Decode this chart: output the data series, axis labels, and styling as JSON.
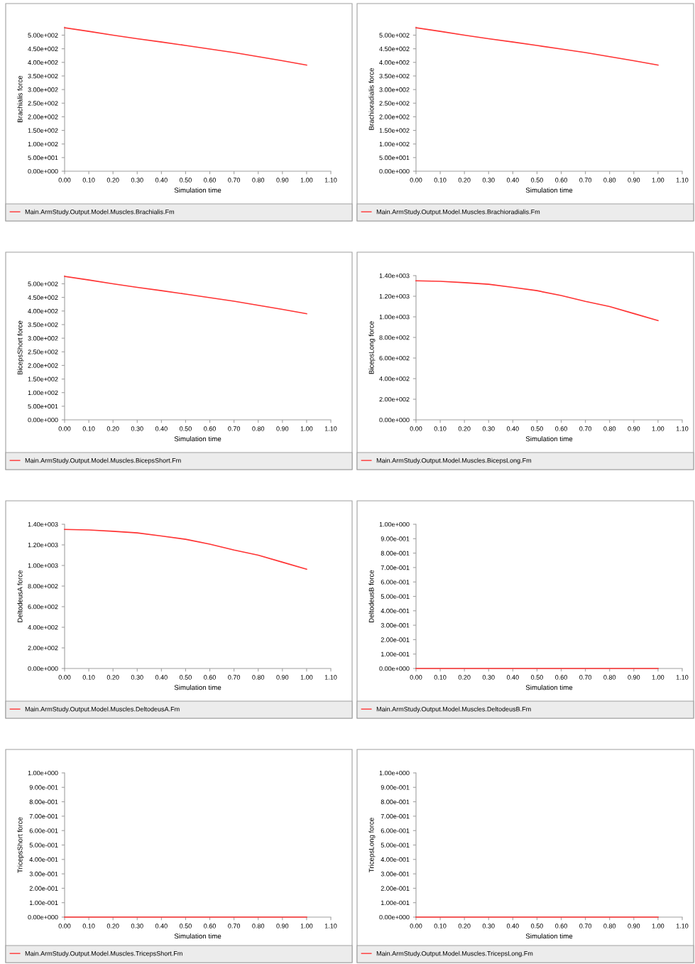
{
  "chart_data": [
    {
      "type": "line",
      "xlabel": "Simulation time",
      "ylabel": "Brachialis force",
      "x": [
        0,
        0.1,
        0.2,
        0.3,
        0.4,
        0.5,
        0.6,
        0.7,
        0.8,
        0.9,
        1.0
      ],
      "series": [
        {
          "name": "Main.ArmStudy.Output.Model.Muscles.Brachialis.Fm",
          "color": "#ff3333",
          "values": [
            527,
            514,
            500,
            487,
            475,
            462,
            449,
            436,
            421,
            406,
            390
          ]
        }
      ],
      "xlim": [
        0,
        1.1
      ],
      "xticks": [
        {
          "value": 0,
          "label": "0.00"
        },
        {
          "value": 0.1,
          "label": "0.10"
        },
        {
          "value": 0.2,
          "label": "0.20"
        },
        {
          "value": 0.3,
          "label": "0.30"
        },
        {
          "value": 0.4,
          "label": "0.40"
        },
        {
          "value": 0.5,
          "label": "0.50"
        },
        {
          "value": 0.6,
          "label": "0.60"
        },
        {
          "value": 0.7,
          "label": "0.70"
        },
        {
          "value": 0.8,
          "label": "0.80"
        },
        {
          "value": 0.9,
          "label": "0.90"
        },
        {
          "value": 1.0,
          "label": "1.00"
        },
        {
          "value": 1.1,
          "label": "1.10"
        }
      ],
      "ylim": [
        0,
        530
      ],
      "yticks": [
        {
          "value": 0,
          "label": "0.00e+000"
        },
        {
          "value": 50,
          "label": "5.00e+001"
        },
        {
          "value": 100,
          "label": "1.00e+002"
        },
        {
          "value": 150,
          "label": "1.50e+002"
        },
        {
          "value": 200,
          "label": "2.00e+002"
        },
        {
          "value": 250,
          "label": "2.50e+002"
        },
        {
          "value": 300,
          "label": "3.00e+002"
        },
        {
          "value": 350,
          "label": "3.50e+002"
        },
        {
          "value": 400,
          "label": "4.00e+002"
        },
        {
          "value": 450,
          "label": "4.50e+002"
        },
        {
          "value": 500,
          "label": "5.00e+002"
        }
      ],
      "legend": "bottom",
      "grid": false
    },
    {
      "type": "line",
      "xlabel": "Simulation time",
      "ylabel": "Brachioradialis force",
      "x": [
        0,
        0.1,
        0.2,
        0.3,
        0.4,
        0.5,
        0.6,
        0.7,
        0.8,
        0.9,
        1.0
      ],
      "series": [
        {
          "name": "Main.ArmStudy.Output.Model.Muscles.Brachioradialis.Fm",
          "color": "#ff3333",
          "values": [
            527,
            514,
            500,
            487,
            475,
            462,
            449,
            436,
            421,
            406,
            390
          ]
        }
      ],
      "xlim": [
        0,
        1.1
      ],
      "xticks": [
        {
          "value": 0,
          "label": "0.00"
        },
        {
          "value": 0.1,
          "label": "0.10"
        },
        {
          "value": 0.2,
          "label": "0.20"
        },
        {
          "value": 0.3,
          "label": "0.30"
        },
        {
          "value": 0.4,
          "label": "0.40"
        },
        {
          "value": 0.5,
          "label": "0.50"
        },
        {
          "value": 0.6,
          "label": "0.60"
        },
        {
          "value": 0.7,
          "label": "0.70"
        },
        {
          "value": 0.8,
          "label": "0.80"
        },
        {
          "value": 0.9,
          "label": "0.90"
        },
        {
          "value": 1.0,
          "label": "1.00"
        },
        {
          "value": 1.1,
          "label": "1.10"
        }
      ],
      "ylim": [
        0,
        530
      ],
      "yticks": [
        {
          "value": 0,
          "label": "0.00e+000"
        },
        {
          "value": 50,
          "label": "5.00e+001"
        },
        {
          "value": 100,
          "label": "1.00e+002"
        },
        {
          "value": 150,
          "label": "1.50e+002"
        },
        {
          "value": 200,
          "label": "2.00e+002"
        },
        {
          "value": 250,
          "label": "2.50e+002"
        },
        {
          "value": 300,
          "label": "3.00e+002"
        },
        {
          "value": 350,
          "label": "3.50e+002"
        },
        {
          "value": 400,
          "label": "4.00e+002"
        },
        {
          "value": 450,
          "label": "4.50e+002"
        },
        {
          "value": 500,
          "label": "5.00e+002"
        }
      ],
      "legend": "bottom",
      "grid": false
    },
    {
      "type": "line",
      "xlabel": "Simulation time",
      "ylabel": "BicepsShort force",
      "x": [
        0,
        0.1,
        0.2,
        0.3,
        0.4,
        0.5,
        0.6,
        0.7,
        0.8,
        0.9,
        1.0
      ],
      "series": [
        {
          "name": "Main.ArmStudy.Output.Model.Muscles.BicepsShort.Fm",
          "color": "#ff3333",
          "values": [
            527,
            514,
            500,
            487,
            475,
            462,
            449,
            436,
            421,
            406,
            390
          ]
        }
      ],
      "xlim": [
        0,
        1.1
      ],
      "xticks": [
        {
          "value": 0,
          "label": "0.00"
        },
        {
          "value": 0.1,
          "label": "0.10"
        },
        {
          "value": 0.2,
          "label": "0.20"
        },
        {
          "value": 0.3,
          "label": "0.30"
        },
        {
          "value": 0.4,
          "label": "0.40"
        },
        {
          "value": 0.5,
          "label": "0.50"
        },
        {
          "value": 0.6,
          "label": "0.60"
        },
        {
          "value": 0.7,
          "label": "0.70"
        },
        {
          "value": 0.8,
          "label": "0.80"
        },
        {
          "value": 0.9,
          "label": "0.90"
        },
        {
          "value": 1.0,
          "label": "1.00"
        },
        {
          "value": 1.1,
          "label": "1.10"
        }
      ],
      "ylim": [
        0,
        530
      ],
      "yticks": [
        {
          "value": 0,
          "label": "0.00e+000"
        },
        {
          "value": 50,
          "label": "5.00e+001"
        },
        {
          "value": 100,
          "label": "1.00e+002"
        },
        {
          "value": 150,
          "label": "1.50e+002"
        },
        {
          "value": 200,
          "label": "2.00e+002"
        },
        {
          "value": 250,
          "label": "2.50e+002"
        },
        {
          "value": 300,
          "label": "3.00e+002"
        },
        {
          "value": 350,
          "label": "3.50e+002"
        },
        {
          "value": 400,
          "label": "4.00e+002"
        },
        {
          "value": 450,
          "label": "4.50e+002"
        },
        {
          "value": 500,
          "label": "5.00e+002"
        }
      ],
      "legend": "bottom",
      "grid": false
    },
    {
      "type": "line",
      "xlabel": "Simulation time",
      "ylabel": "BicepsLong force",
      "x": [
        0,
        0.1,
        0.2,
        0.3,
        0.4,
        0.5,
        0.6,
        0.7,
        0.8,
        0.9,
        1.0
      ],
      "series": [
        {
          "name": "Main.ArmStudy.Output.Model.Muscles.BicepsLong.Fm",
          "color": "#ff3333",
          "values": [
            1350,
            1345,
            1332,
            1316,
            1286,
            1254,
            1207,
            1150,
            1100,
            1032,
            964
          ]
        }
      ],
      "xlim": [
        0,
        1.1
      ],
      "xticks": [
        {
          "value": 0,
          "label": "0.00"
        },
        {
          "value": 0.1,
          "label": "0.10"
        },
        {
          "value": 0.2,
          "label": "0.20"
        },
        {
          "value": 0.3,
          "label": "0.30"
        },
        {
          "value": 0.4,
          "label": "0.40"
        },
        {
          "value": 0.5,
          "label": "0.50"
        },
        {
          "value": 0.6,
          "label": "0.60"
        },
        {
          "value": 0.7,
          "label": "0.70"
        },
        {
          "value": 0.8,
          "label": "0.80"
        },
        {
          "value": 0.9,
          "label": "0.90"
        },
        {
          "value": 1.0,
          "label": "1.00"
        },
        {
          "value": 1.1,
          "label": "1.10"
        }
      ],
      "ylim": [
        0,
        1400
      ],
      "yticks": [
        {
          "value": 0,
          "label": "0.00e+000"
        },
        {
          "value": 200,
          "label": "2.00e+002"
        },
        {
          "value": 400,
          "label": "4.00e+002"
        },
        {
          "value": 600,
          "label": "6.00e+002"
        },
        {
          "value": 800,
          "label": "8.00e+002"
        },
        {
          "value": 1000,
          "label": "1.00e+003"
        },
        {
          "value": 1200,
          "label": "1.20e+003"
        },
        {
          "value": 1400,
          "label": "1.40e+003"
        }
      ],
      "legend": "bottom",
      "grid": false
    },
    {
      "type": "line",
      "xlabel": "Simulation time",
      "ylabel": "DeltodeusA force",
      "x": [
        0,
        0.1,
        0.2,
        0.3,
        0.4,
        0.5,
        0.6,
        0.7,
        0.8,
        0.9,
        1.0
      ],
      "series": [
        {
          "name": "Main.ArmStudy.Output.Model.Muscles.DeltodeusA.Fm",
          "color": "#ff3333",
          "values": [
            1350,
            1345,
            1332,
            1316,
            1286,
            1254,
            1207,
            1150,
            1100,
            1032,
            964
          ]
        }
      ],
      "xlim": [
        0,
        1.1
      ],
      "xticks": [
        {
          "value": 0,
          "label": "0.00"
        },
        {
          "value": 0.1,
          "label": "0.10"
        },
        {
          "value": 0.2,
          "label": "0.20"
        },
        {
          "value": 0.3,
          "label": "0.30"
        },
        {
          "value": 0.4,
          "label": "0.40"
        },
        {
          "value": 0.5,
          "label": "0.50"
        },
        {
          "value": 0.6,
          "label": "0.60"
        },
        {
          "value": 0.7,
          "label": "0.70"
        },
        {
          "value": 0.8,
          "label": "0.80"
        },
        {
          "value": 0.9,
          "label": "0.90"
        },
        {
          "value": 1.0,
          "label": "1.00"
        },
        {
          "value": 1.1,
          "label": "1.10"
        }
      ],
      "ylim": [
        0,
        1400
      ],
      "yticks": [
        {
          "value": 0,
          "label": "0.00e+000"
        },
        {
          "value": 200,
          "label": "2.00e+002"
        },
        {
          "value": 400,
          "label": "4.00e+002"
        },
        {
          "value": 600,
          "label": "6.00e+002"
        },
        {
          "value": 800,
          "label": "8.00e+002"
        },
        {
          "value": 1000,
          "label": "1.00e+003"
        },
        {
          "value": 1200,
          "label": "1.20e+003"
        },
        {
          "value": 1400,
          "label": "1.40e+003"
        }
      ],
      "legend": "bottom",
      "grid": false
    },
    {
      "type": "line",
      "xlabel": "Simulation time",
      "ylabel": "DeltodeusB force",
      "x": [
        0,
        0.1,
        0.2,
        0.3,
        0.4,
        0.5,
        0.6,
        0.7,
        0.8,
        0.9,
        1.0
      ],
      "series": [
        {
          "name": "Main.ArmStudy.Output.Model.Muscles.DeltodeusB.Fm",
          "color": "#ff3333",
          "values": [
            0,
            0,
            0,
            0,
            0,
            0,
            0,
            0,
            0,
            0,
            0
          ]
        }
      ],
      "xlim": [
        0,
        1.1
      ],
      "xticks": [
        {
          "value": 0,
          "label": "0.00"
        },
        {
          "value": 0.1,
          "label": "0.10"
        },
        {
          "value": 0.2,
          "label": "0.20"
        },
        {
          "value": 0.3,
          "label": "0.30"
        },
        {
          "value": 0.4,
          "label": "0.40"
        },
        {
          "value": 0.5,
          "label": "0.50"
        },
        {
          "value": 0.6,
          "label": "0.60"
        },
        {
          "value": 0.7,
          "label": "0.70"
        },
        {
          "value": 0.8,
          "label": "0.80"
        },
        {
          "value": 0.9,
          "label": "0.90"
        },
        {
          "value": 1.0,
          "label": "1.00"
        },
        {
          "value": 1.1,
          "label": "1.10"
        }
      ],
      "ylim": [
        0,
        1
      ],
      "yticks": [
        {
          "value": 0,
          "label": "0.00e+000"
        },
        {
          "value": 0.1,
          "label": "1.00e-001"
        },
        {
          "value": 0.2,
          "label": "2.00e-001"
        },
        {
          "value": 0.3,
          "label": "3.00e-001"
        },
        {
          "value": 0.4,
          "label": "4.00e-001"
        },
        {
          "value": 0.5,
          "label": "5.00e-001"
        },
        {
          "value": 0.6,
          "label": "6.00e-001"
        },
        {
          "value": 0.7,
          "label": "7.00e-001"
        },
        {
          "value": 0.8,
          "label": "8.00e-001"
        },
        {
          "value": 0.9,
          "label": "9.00e-001"
        },
        {
          "value": 1.0,
          "label": "1.00e+000"
        }
      ],
      "legend": "bottom",
      "grid": false
    },
    {
      "type": "line",
      "xlabel": "Simulation time",
      "ylabel": "TricepsShort force",
      "x": [
        0,
        0.1,
        0.2,
        0.3,
        0.4,
        0.5,
        0.6,
        0.7,
        0.8,
        0.9,
        1.0
      ],
      "series": [
        {
          "name": "Main.ArmStudy.Output.Model.Muscles.TricepsShort.Fm",
          "color": "#ff3333",
          "values": [
            0,
            0,
            0,
            0,
            0,
            0,
            0,
            0,
            0,
            0,
            0
          ]
        }
      ],
      "xlim": [
        0,
        1.1
      ],
      "xticks": [
        {
          "value": 0,
          "label": "0.00"
        },
        {
          "value": 0.1,
          "label": "0.10"
        },
        {
          "value": 0.2,
          "label": "0.20"
        },
        {
          "value": 0.3,
          "label": "0.30"
        },
        {
          "value": 0.4,
          "label": "0.40"
        },
        {
          "value": 0.5,
          "label": "0.50"
        },
        {
          "value": 0.6,
          "label": "0.60"
        },
        {
          "value": 0.7,
          "label": "0.70"
        },
        {
          "value": 0.8,
          "label": "0.80"
        },
        {
          "value": 0.9,
          "label": "0.90"
        },
        {
          "value": 1.0,
          "label": "1.00"
        },
        {
          "value": 1.1,
          "label": "1.10"
        }
      ],
      "ylim": [
        0,
        1
      ],
      "yticks": [
        {
          "value": 0,
          "label": "0.00e+000"
        },
        {
          "value": 0.1,
          "label": "1.00e-001"
        },
        {
          "value": 0.2,
          "label": "2.00e-001"
        },
        {
          "value": 0.3,
          "label": "3.00e-001"
        },
        {
          "value": 0.4,
          "label": "4.00e-001"
        },
        {
          "value": 0.5,
          "label": "5.00e-001"
        },
        {
          "value": 0.6,
          "label": "6.00e-001"
        },
        {
          "value": 0.7,
          "label": "7.00e-001"
        },
        {
          "value": 0.8,
          "label": "8.00e-001"
        },
        {
          "value": 0.9,
          "label": "9.00e-001"
        },
        {
          "value": 1.0,
          "label": "1.00e+000"
        }
      ],
      "legend": "bottom",
      "grid": false
    },
    {
      "type": "line",
      "xlabel": "Simulation time",
      "ylabel": "TricepsLong force",
      "x": [
        0,
        0.1,
        0.2,
        0.3,
        0.4,
        0.5,
        0.6,
        0.7,
        0.8,
        0.9,
        1.0
      ],
      "series": [
        {
          "name": "Main.ArmStudy.Output.Model.Muscles.TricepsLong.Fm",
          "color": "#ff3333",
          "values": [
            0,
            0,
            0,
            0,
            0,
            0,
            0,
            0,
            0,
            0,
            0
          ]
        }
      ],
      "xlim": [
        0,
        1.1
      ],
      "xticks": [
        {
          "value": 0,
          "label": "0.00"
        },
        {
          "value": 0.1,
          "label": "0.10"
        },
        {
          "value": 0.2,
          "label": "0.20"
        },
        {
          "value": 0.3,
          "label": "0.30"
        },
        {
          "value": 0.4,
          "label": "0.40"
        },
        {
          "value": 0.5,
          "label": "0.50"
        },
        {
          "value": 0.6,
          "label": "0.60"
        },
        {
          "value": 0.7,
          "label": "0.70"
        },
        {
          "value": 0.8,
          "label": "0.80"
        },
        {
          "value": 0.9,
          "label": "0.90"
        },
        {
          "value": 1.0,
          "label": "1.00"
        },
        {
          "value": 1.1,
          "label": "1.10"
        }
      ],
      "ylim": [
        0,
        1
      ],
      "yticks": [
        {
          "value": 0,
          "label": "0.00e+000"
        },
        {
          "value": 0.1,
          "label": "1.00e-001"
        },
        {
          "value": 0.2,
          "label": "2.00e-001"
        },
        {
          "value": 0.3,
          "label": "3.00e-001"
        },
        {
          "value": 0.4,
          "label": "4.00e-001"
        },
        {
          "value": 0.5,
          "label": "5.00e-001"
        },
        {
          "value": 0.6,
          "label": "6.00e-001"
        },
        {
          "value": 0.7,
          "label": "7.00e-001"
        },
        {
          "value": 0.8,
          "label": "8.00e-001"
        },
        {
          "value": 0.9,
          "label": "9.00e-001"
        },
        {
          "value": 1.0,
          "label": "1.00e+000"
        }
      ],
      "legend": "bottom",
      "grid": false
    }
  ]
}
